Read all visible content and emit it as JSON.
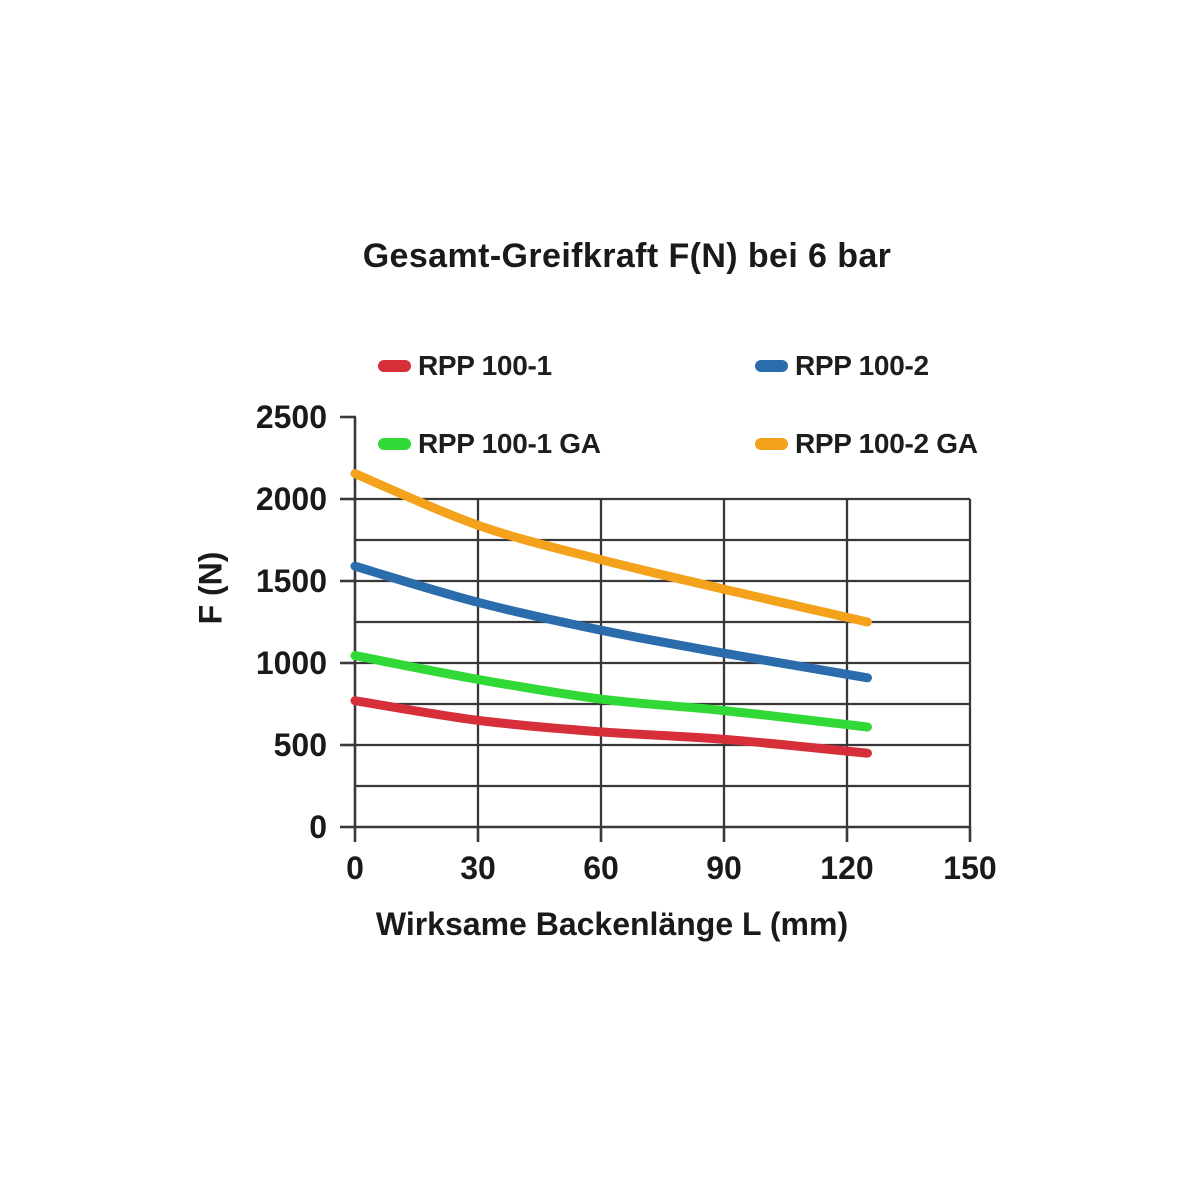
{
  "page": {
    "background": "#ffffff"
  },
  "chart_data": {
    "type": "line",
    "title": "Gesamt-Greifkraft F(N) bei 6 bar",
    "xlabel": "Wirksame Backenlänge L (mm)",
    "ylabel": "F (N)",
    "x": [
      0,
      30,
      60,
      90,
      125
    ],
    "series": [
      {
        "name": "RPP 100-1",
        "color": "#d62f3a",
        "values": [
          770,
          650,
          580,
          535,
          450
        ]
      },
      {
        "name": "RPP 100-2",
        "color": "#2b6cad",
        "values": [
          1590,
          1370,
          1200,
          1060,
          910
        ]
      },
      {
        "name": "RPP 100-1 GA",
        "color": "#31d936",
        "values": [
          1045,
          900,
          780,
          710,
          610
        ]
      },
      {
        "name": "RPP 100-2 GA",
        "color": "#f4a11b",
        "values": [
          2155,
          1840,
          1630,
          1450,
          1250
        ]
      }
    ],
    "xlim": [
      0,
      150
    ],
    "ylim": [
      0,
      2500
    ],
    "x_ticks": [
      "0",
      "30",
      "60",
      "90",
      "120",
      "150"
    ],
    "y_ticks": [
      "0",
      "500",
      "1000",
      "1500",
      "2000",
      "2500"
    ],
    "grid": "on",
    "grid_step_y": 250,
    "grid_step_x": 30,
    "legend_position": "top",
    "grid_color": "#383838"
  }
}
